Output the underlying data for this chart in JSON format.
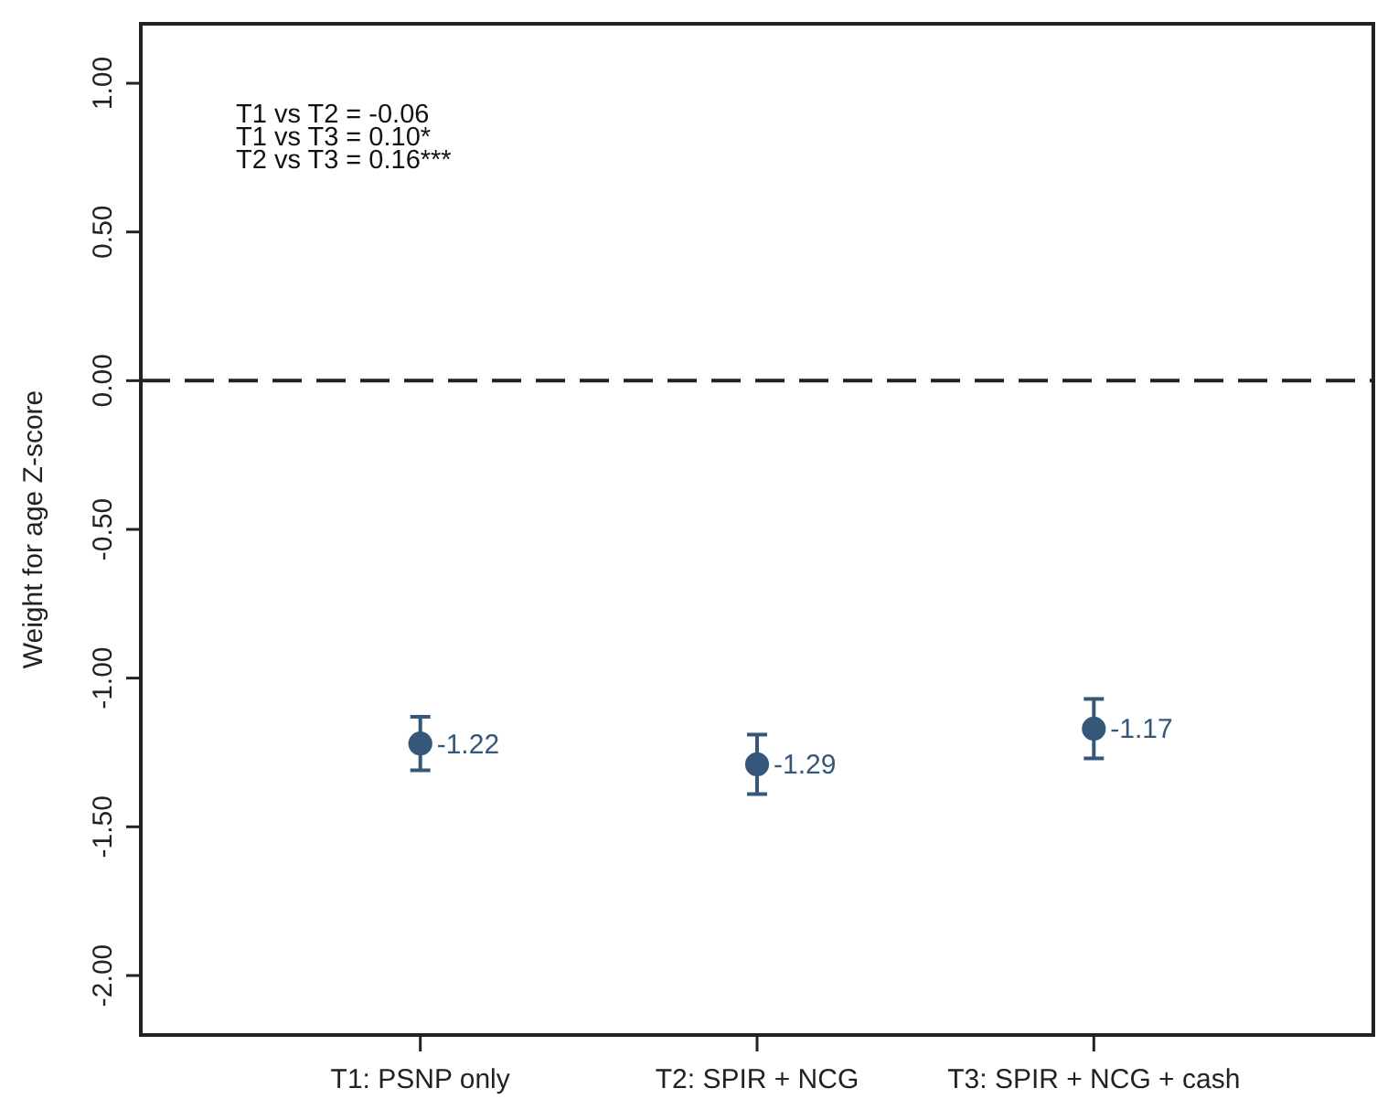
{
  "chart_data": {
    "type": "scatter",
    "ylabel": "Weight for age Z-score",
    "categories": [
      "T1: PSNP only",
      "T2: SPIR + NCG",
      "T3: SPIR + NCG + cash"
    ],
    "values": [
      -1.22,
      -1.29,
      -1.17
    ],
    "errors": [
      0.09,
      0.1,
      0.1
    ],
    "color": "#35587a",
    "marker": "circle",
    "data_labels": true,
    "ylim": [
      -2.2,
      1.2
    ],
    "yticks": [
      {
        "value": -2,
        "label": "-2.00"
      },
      {
        "value": -1.5,
        "label": "-1.50"
      },
      {
        "value": -1,
        "label": "-1.00"
      },
      {
        "value": -0.5,
        "label": "-0.50"
      },
      {
        "value": 0,
        "label": "0.00"
      },
      {
        "value": 0.5,
        "label": "0.50"
      },
      {
        "value": 1,
        "label": "1.00"
      }
    ],
    "ref_lines": [
      {
        "axis": "y",
        "value": 0,
        "color": "#222222",
        "line_style": "dashed"
      }
    ],
    "annotations": [
      "T1 vs T2 = -0.06",
      "T1 vs T3 = 0.10*",
      "T2 vs T3 = 0.16***"
    ]
  }
}
